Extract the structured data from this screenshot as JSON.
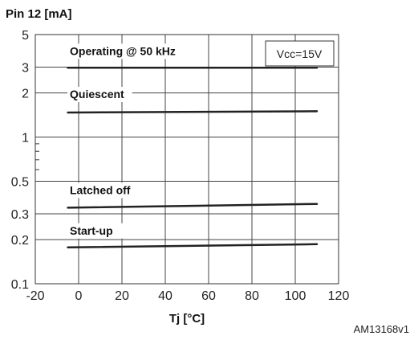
{
  "chart_data": {
    "type": "line",
    "ylabel": "Pin 12 [mA]",
    "xlabel": "Tj [°C]",
    "reference": "AM13168v1",
    "condition": "Vcc=15V",
    "x_scale": "linear",
    "y_scale": "log",
    "xlim": [
      -20,
      120
    ],
    "ylim": [
      0.1,
      5
    ],
    "grid": true,
    "xticks": [
      -20,
      0,
      20,
      40,
      60,
      80,
      100,
      120
    ],
    "xtick_labels": [
      "-20",
      "0",
      "20",
      "40",
      "60",
      "80",
      "100",
      "120"
    ],
    "yticks": [
      0.1,
      0.2,
      0.3,
      0.5,
      1,
      2,
      3,
      5
    ],
    "ytick_labels": [
      "0.1",
      "0.2",
      "0.3",
      "0.5",
      "1",
      "2",
      "3",
      "5"
    ],
    "y_minor_ticks": [
      0.6,
      0.7,
      0.8,
      0.9
    ],
    "series": [
      {
        "name": "Operating @ 50 kHz",
        "x": [
          -5,
          110
        ],
        "y": [
          2.97,
          2.97
        ]
      },
      {
        "name": "Quiescent",
        "x": [
          -5,
          110
        ],
        "y": [
          1.47,
          1.5
        ]
      },
      {
        "name": "Latched off",
        "x": [
          -5,
          110
        ],
        "y": [
          0.33,
          0.35
        ]
      },
      {
        "name": "Start-up",
        "x": [
          -5,
          110
        ],
        "y": [
          0.177,
          0.186
        ]
      }
    ]
  }
}
